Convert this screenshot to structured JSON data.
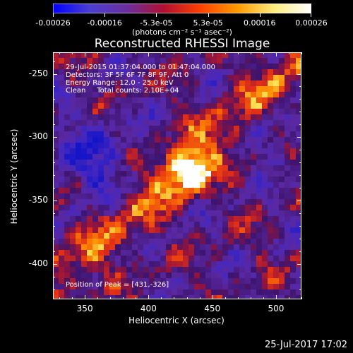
{
  "colorbar": {
    "tick_labels": [
      "-0.00026",
      "-0.00016",
      "-5.3e-05",
      "5.3e-05",
      "0.00016",
      "0.00026"
    ],
    "units": "(photons cm⁻² s⁻¹ asec⁻²)",
    "colors": [
      "#0000ff",
      "#4b3fd0",
      "#6a2fa0",
      "#b01030",
      "#ff4000",
      "#ff9a00",
      "#ffee80",
      "#ffffff"
    ]
  },
  "chart_data": {
    "type": "heatmap",
    "title": "Reconstructed RHESSI Image",
    "xlabel": "Heliocentric X (arcsec)",
    "ylabel": "Heliocentric Y (arcsec)",
    "xlim": [
      325,
      520
    ],
    "ylim": [
      -428,
      -233
    ],
    "x_ticks": [
      "350",
      "400",
      "450",
      "500"
    ],
    "y_ticks": [
      "-250",
      "-300",
      "-350",
      "-400"
    ],
    "color_range": [
      -0.00026,
      0.00026
    ],
    "peak_position": [
      431,
      -326
    ],
    "annotations": [
      "29-Jul-2015 01:37:04.000 to 01:47:04.000",
      "Detectors: 3F 5F 6F 7F 8F 9F, Att 0",
      "Energy Range: 12.0 - 25.0 keV",
      "Clean     Total counts: 2.10E+04"
    ],
    "peak_label": "Position of Peak = [431,-326]"
  },
  "footer": {
    "timestamp": "25-Jul-2017 17:02"
  }
}
